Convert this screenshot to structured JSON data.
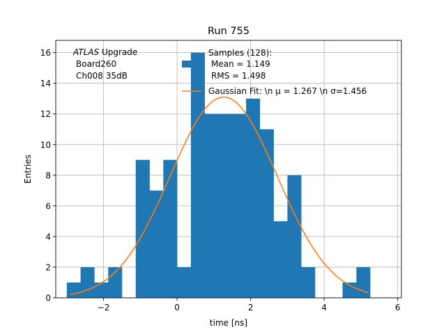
{
  "chart_data": {
    "type": "bar",
    "title": "Run 755",
    "xlabel": "time [ns]",
    "ylabel": "Entries",
    "xlim": [
      -3.3,
      6.1
    ],
    "ylim": [
      0,
      16.8
    ],
    "grid": true,
    "xticks": [
      -2,
      0,
      2,
      4,
      6
    ],
    "yticks": [
      0,
      2,
      4,
      6,
      8,
      10,
      12,
      14,
      16
    ],
    "xtick_labels": [
      "−2",
      "0",
      "2",
      "4",
      "6"
    ],
    "ytick_labels": [
      "0",
      "2",
      "4",
      "6",
      "8",
      "10",
      "12",
      "14",
      "16"
    ],
    "histogram": {
      "name": "Samples (128):",
      "color": "#1f77b4",
      "bin_edges": [
        -3.0,
        -2.625,
        -2.25,
        -1.875,
        -1.5,
        -1.125,
        -0.75,
        -0.375,
        0.0,
        0.375,
        0.75,
        1.125,
        1.5,
        1.875,
        2.25,
        2.625,
        3.0,
        3.375,
        3.75,
        4.125,
        4.5,
        4.875,
        5.25
      ],
      "counts": [
        1,
        2,
        1,
        2,
        0,
        9,
        7,
        9,
        2,
        16,
        12,
        12,
        12,
        13,
        11,
        5,
        8,
        2,
        0,
        0,
        1,
        2
      ]
    },
    "fit": {
      "name": "Gaussian Fit",
      "color": "#ff7f0e",
      "amplitude": 13.1,
      "mu": 1.267,
      "sigma": 1.456,
      "x_range": [
        -2.9,
        5.2
      ]
    },
    "annotation_lines": [
      "ATLAS Upgrade",
      "Board260",
      "Ch008 35dB"
    ],
    "legend": {
      "placement": "top-right",
      "hist_lines": [
        "Samples (128):",
        "Mean = 1.149",
        "RMS = 1.498"
      ],
      "fit_label": "Gaussian Fit: \\n μ = 1.267 \\n σ=1.456"
    }
  }
}
